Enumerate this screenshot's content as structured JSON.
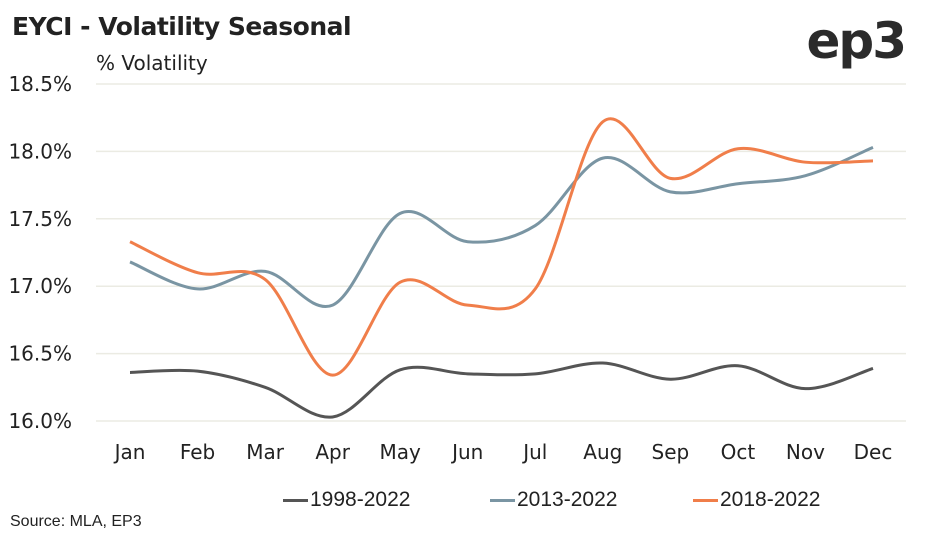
{
  "chart_data": {
    "type": "line",
    "title": "EYCI - Volatility Seasonal",
    "subtitle": "% Volatility",
    "xlabel": "",
    "ylabel": "% Volatility",
    "categories": [
      "Jan",
      "Feb",
      "Mar",
      "Apr",
      "May",
      "Jun",
      "Jul",
      "Aug",
      "Sep",
      "Oct",
      "Nov",
      "Dec"
    ],
    "ylim": [
      16.0,
      18.5
    ],
    "yticks": [
      16.0,
      16.5,
      17.0,
      17.5,
      18.0,
      18.5
    ],
    "ytick_labels": [
      "16.0%",
      "16.5%",
      "17.0%",
      "17.5%",
      "18.0%",
      "18.5%"
    ],
    "grid": true,
    "smooth": true,
    "legend_position": "bottom",
    "series": [
      {
        "name": "1998-2022",
        "color": "#555555",
        "values": [
          16.36,
          16.37,
          16.25,
          16.03,
          16.38,
          16.35,
          16.35,
          16.43,
          16.31,
          16.41,
          16.24,
          16.39
        ]
      },
      {
        "name": "2013-2022",
        "color": "#7a95a3",
        "values": [
          17.18,
          16.98,
          17.11,
          16.86,
          17.54,
          17.33,
          17.45,
          17.95,
          17.7,
          17.76,
          17.82,
          18.03
        ]
      },
      {
        "name": "2018-2022",
        "color": "#f07e4a",
        "values": [
          17.33,
          17.1,
          17.05,
          16.34,
          17.03,
          16.86,
          16.98,
          18.22,
          17.8,
          18.02,
          17.92,
          17.93
        ]
      }
    ]
  },
  "logo": "ep3",
  "source": "Source: MLA, EP3",
  "colors": {
    "gridline": "#ebebe3",
    "text": "#222222"
  }
}
